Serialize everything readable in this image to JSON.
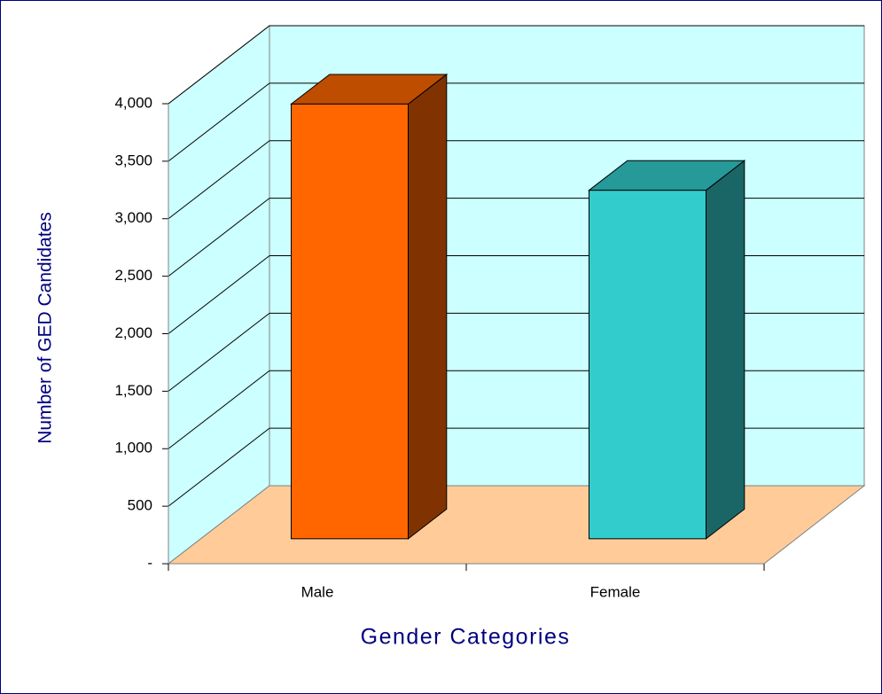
{
  "chart_data": {
    "type": "bar3d",
    "categories": [
      "Male",
      "Female"
    ],
    "values": [
      3780,
      3030
    ],
    "colors": [
      "#ff6600",
      "#33cccc"
    ],
    "xlabel": "Gender Categories",
    "ylabel": "Number of GED Candidates",
    "ylim": [
      0,
      4000
    ],
    "yticks": [
      {
        "value": 0,
        "label": "-"
      },
      500,
      {
        "value": 1000,
        "label": "1,000"
      },
      {
        "value": 1500,
        "label": "1,500"
      },
      {
        "value": 2000,
        "label": "2,000"
      },
      {
        "value": 2500,
        "label": "2,500"
      },
      {
        "value": 3000,
        "label": "3,000"
      },
      {
        "value": 3500,
        "label": "3,500"
      },
      {
        "value": 4000,
        "label": "4,000"
      }
    ],
    "grid": true
  }
}
